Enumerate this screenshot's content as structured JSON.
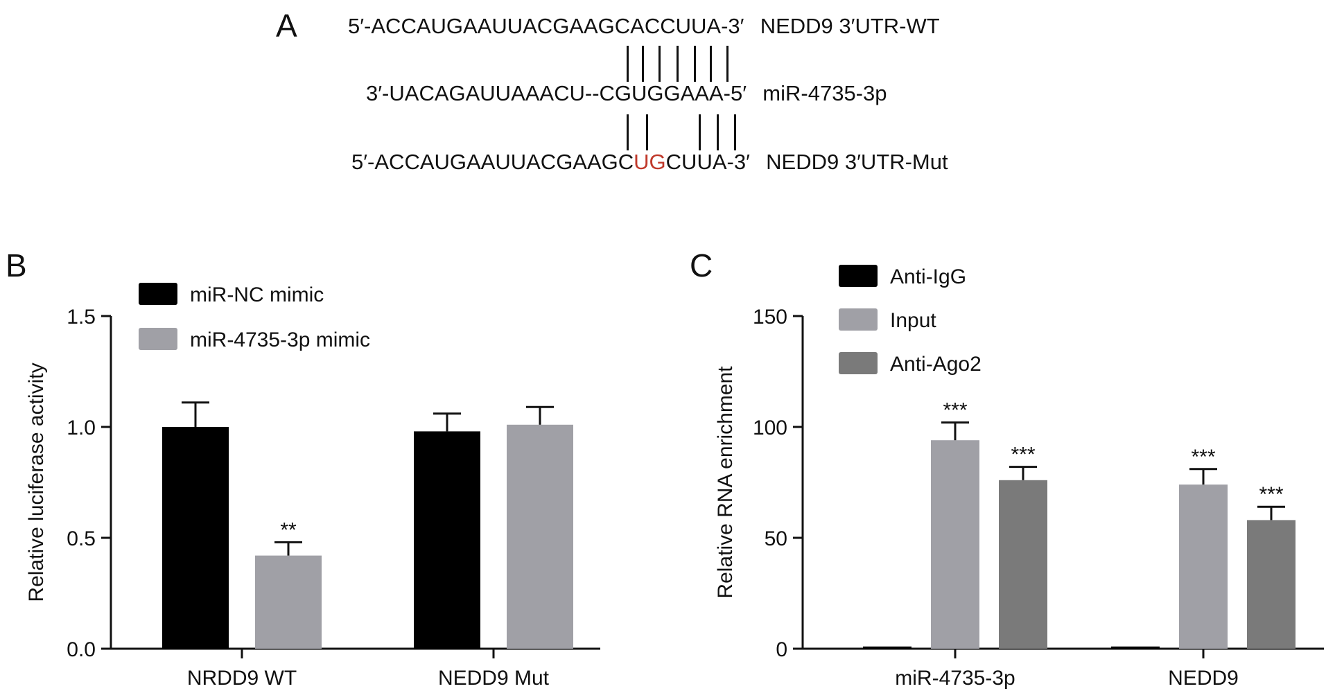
{
  "panel_a": {
    "letter": "A",
    "wt_seq": "5′-ACCAUGAAUUACGAAGCACCUUA-3′",
    "wt_label": "NEDD9 3′UTR-WT",
    "mirna_seq": "3′-UACAGAUUAAACU--CGUGGAAA-5′",
    "mirna_label": "miR-4735-3p",
    "mut_seq_prefix": "5′-ACCAUGAAUUACGAAGC",
    "mut_seq_highlight": "UG",
    "mut_seq_suffix": "CUUA-3′",
    "mut_label": "NEDD9 3′UTR-Mut",
    "colors": {
      "mutation": "#c0392b"
    }
  },
  "panel_b": {
    "letter": "B"
  },
  "panel_c": {
    "letter": "C"
  },
  "chart_data": [
    {
      "type": "bar",
      "panel": "B",
      "ylabel": "Relative luciferase activity",
      "xlabel": "",
      "ylim": [
        0,
        1.5
      ],
      "yticks": [
        "0.0",
        "0.5",
        "1.0",
        "1.5"
      ],
      "categories": [
        "NRDD9 WT",
        "NEDD9 Mut"
      ],
      "series": [
        {
          "name": "miR-NC mimic",
          "values": [
            1.0,
            0.98
          ],
          "errors": [
            0.11,
            0.08
          ],
          "color": "#000000"
        },
        {
          "name": "miR-4735-3p mimic",
          "values": [
            0.42,
            1.01
          ],
          "errors": [
            0.06,
            0.08
          ],
          "color": "#a0a0a6"
        }
      ],
      "annotations": [
        {
          "category": "NRDD9 WT",
          "series": "miR-4735-3p mimic",
          "text": "**"
        }
      ],
      "legend": "top-left",
      "grid": false
    },
    {
      "type": "bar",
      "panel": "C",
      "ylabel": "Relative RNA enrichment",
      "xlabel": "",
      "ylim": [
        0,
        150
      ],
      "yticks": [
        "0",
        "50",
        "100",
        "150"
      ],
      "categories": [
        "miR-4735-3p",
        "NEDD9"
      ],
      "series": [
        {
          "name": "Anti-IgG",
          "values": [
            1,
            1
          ],
          "errors": [
            0,
            0
          ],
          "color": "#000000"
        },
        {
          "name": "Input",
          "values": [
            94,
            74
          ],
          "errors": [
            8,
            7
          ],
          "color": "#a0a0a6"
        },
        {
          "name": "Anti-Ago2",
          "values": [
            76,
            58
          ],
          "errors": [
            6,
            6
          ],
          "color": "#7a7a7a"
        }
      ],
      "annotations": [
        {
          "category": "miR-4735-3p",
          "series": "Input",
          "text": "***"
        },
        {
          "category": "miR-4735-3p",
          "series": "Anti-Ago2",
          "text": "***"
        },
        {
          "category": "NEDD9",
          "series": "Input",
          "text": "***"
        },
        {
          "category": "NEDD9",
          "series": "Anti-Ago2",
          "text": "***"
        }
      ],
      "legend": "top-left",
      "grid": false
    }
  ]
}
